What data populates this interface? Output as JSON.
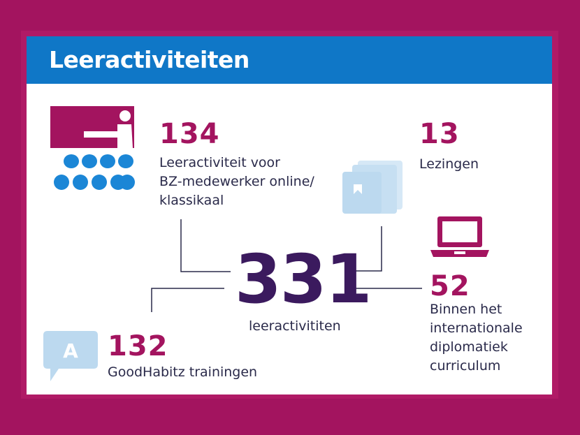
{
  "header": {
    "title": "Leeractiviteiten"
  },
  "center": {
    "value": "331",
    "label": "leeractivititen"
  },
  "items": [
    {
      "value": "134",
      "label": "Leeractiviteit voor\nBZ-medewerker online/\nklassikaal",
      "icon": "classroom-icon"
    },
    {
      "value": "13",
      "label": "Lezingen",
      "icon": "books-icon"
    },
    {
      "value": "52",
      "label": "Binnen het\ninternationale\ndiplomatiek\ncurriculum",
      "icon": "laptop-icon"
    },
    {
      "value": "132",
      "label": "GoodHabitz trainingen",
      "icon": "speech-bubble-icon"
    }
  ],
  "icon_glyphs": {
    "speech_bubble_letter": "A"
  },
  "colors": {
    "background": "#a3145f",
    "header": "#0f77c7",
    "accent": "#a3145f",
    "dark_purple": "#3b1a5e",
    "light_blue": "#bcd9ef",
    "dot_blue": "#1b86d6"
  }
}
